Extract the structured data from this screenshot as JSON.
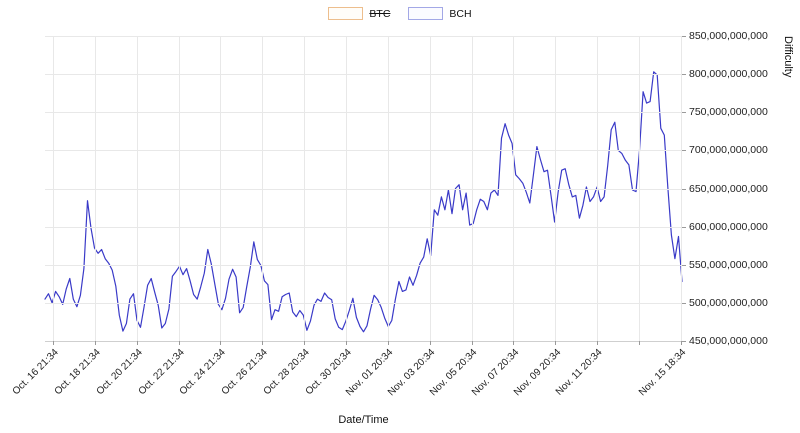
{
  "legend": {
    "items": [
      {
        "label": "BTC",
        "hidden": true,
        "box_border": "#edbe8d",
        "box_fill": "#fffdf9"
      },
      {
        "label": "BCH",
        "hidden": false,
        "box_border": "#a3a8e6",
        "box_fill": "#fbfbff"
      }
    ]
  },
  "x_axis": {
    "title": "Date/Time",
    "ticks": [
      {
        "pos": 0.013,
        "label": "Oct. 16 21:34"
      },
      {
        "pos": 0.078,
        "label": "Oct. 18 21:34"
      },
      {
        "pos": 0.144,
        "label": "Oct. 20 21:34"
      },
      {
        "pos": 0.21,
        "label": "Oct. 22 21:34"
      },
      {
        "pos": 0.275,
        "label": "Oct. 24 21:34"
      },
      {
        "pos": 0.341,
        "label": "Oct. 26 21:34"
      },
      {
        "pos": 0.407,
        "label": "Oct. 28 20:34"
      },
      {
        "pos": 0.472,
        "label": "Oct. 30 20:34"
      },
      {
        "pos": 0.538,
        "label": "Nov. 01 20:34"
      },
      {
        "pos": 0.604,
        "label": "Nov. 03 20:34"
      },
      {
        "pos": 0.67,
        "label": "Nov. 05 20:34"
      },
      {
        "pos": 0.735,
        "label": "Nov. 07 20:34"
      },
      {
        "pos": 0.801,
        "label": "Nov. 09 20:34"
      },
      {
        "pos": 0.867,
        "label": "Nov. 11 20:34"
      },
      {
        "pos": 0.932,
        "label": ""
      },
      {
        "pos": 0.998,
        "label": "Nov. 15 18:34"
      }
    ]
  },
  "y_axis": {
    "title": "Difficulty",
    "tick_labels": [
      "850,000,000,000",
      "800,000,000,000",
      "750,000,000,000",
      "700,000,000,000",
      "650,000,000,000",
      "600,000,000,000",
      "550,000,000,000",
      "500,000,000,000",
      "450,000,000,000"
    ]
  },
  "chart_data": {
    "type": "line",
    "title": "",
    "xlabel": "Date/Time",
    "ylabel": "Difficulty",
    "ylim": [
      450000000000,
      850000000000
    ],
    "grid": true,
    "legend_position": "top-center",
    "y_axis_side": "right",
    "x_range": [
      "Oct. 16 21:34",
      "Nov. 15 18:34"
    ],
    "x_tick_labels": [
      "Oct. 16 21:34",
      "Oct. 18 21:34",
      "Oct. 20 21:34",
      "Oct. 22 21:34",
      "Oct. 24 21:34",
      "Oct. 26 21:34",
      "Oct. 28 20:34",
      "Oct. 30 20:34",
      "Nov. 01 20:34",
      "Nov. 03 20:34",
      "Nov. 05 20:34",
      "Nov. 07 20:34",
      "Nov. 09 20:34",
      "Nov. 11 20:34",
      "Nov. 15 18:34"
    ],
    "series": [
      {
        "name": "BTC",
        "hidden": true,
        "color": "#f0a860",
        "values": []
      },
      {
        "name": "BCH",
        "hidden": false,
        "color": "#3a3ac8",
        "values_unit": "billions",
        "values": [
          505,
          512,
          500,
          515,
          508,
          498,
          518,
          532,
          505,
          495,
          510,
          545,
          634,
          598,
          572,
          565,
          570,
          558,
          552,
          543,
          522,
          484,
          463,
          473,
          505,
          512,
          477,
          468,
          495,
          523,
          532,
          514,
          497,
          467,
          473,
          492,
          535,
          541,
          548,
          537,
          545,
          529,
          511,
          505,
          521,
          539,
          570,
          551,
          524,
          498,
          491,
          506,
          531,
          544,
          534,
          487,
          494,
          521,
          547,
          580,
          557,
          549,
          529,
          524,
          478,
          491,
          489,
          508,
          511,
          513,
          488,
          482,
          490,
          484,
          464,
          476,
          497,
          505,
          502,
          513,
          507,
          504,
          479,
          468,
          465,
          476,
          490,
          506,
          481,
          469,
          462,
          470,
          492,
          510,
          504,
          494,
          480,
          469,
          477,
          505,
          528,
          515,
          517,
          534,
          523,
          536,
          552,
          560,
          584,
          562,
          622,
          615,
          639,
          622,
          648,
          617,
          650,
          655,
          622,
          644,
          602,
          604,
          622,
          636,
          633,
          622,
          644,
          648,
          641,
          716,
          735,
          720,
          709,
          668,
          663,
          657,
          645,
          631,
          668,
          705,
          688,
          672,
          674,
          640,
          606,
          645,
          674,
          676,
          655,
          639,
          641,
          611,
          628,
          652,
          633,
          639,
          652,
          633,
          639,
          680,
          727,
          737,
          700,
          696,
          687,
          681,
          648,
          646,
          700,
          777,
          762,
          764,
          803,
          799,
          729,
          720,
          652,
          589,
          558,
          587,
          528
        ]
      }
    ]
  }
}
